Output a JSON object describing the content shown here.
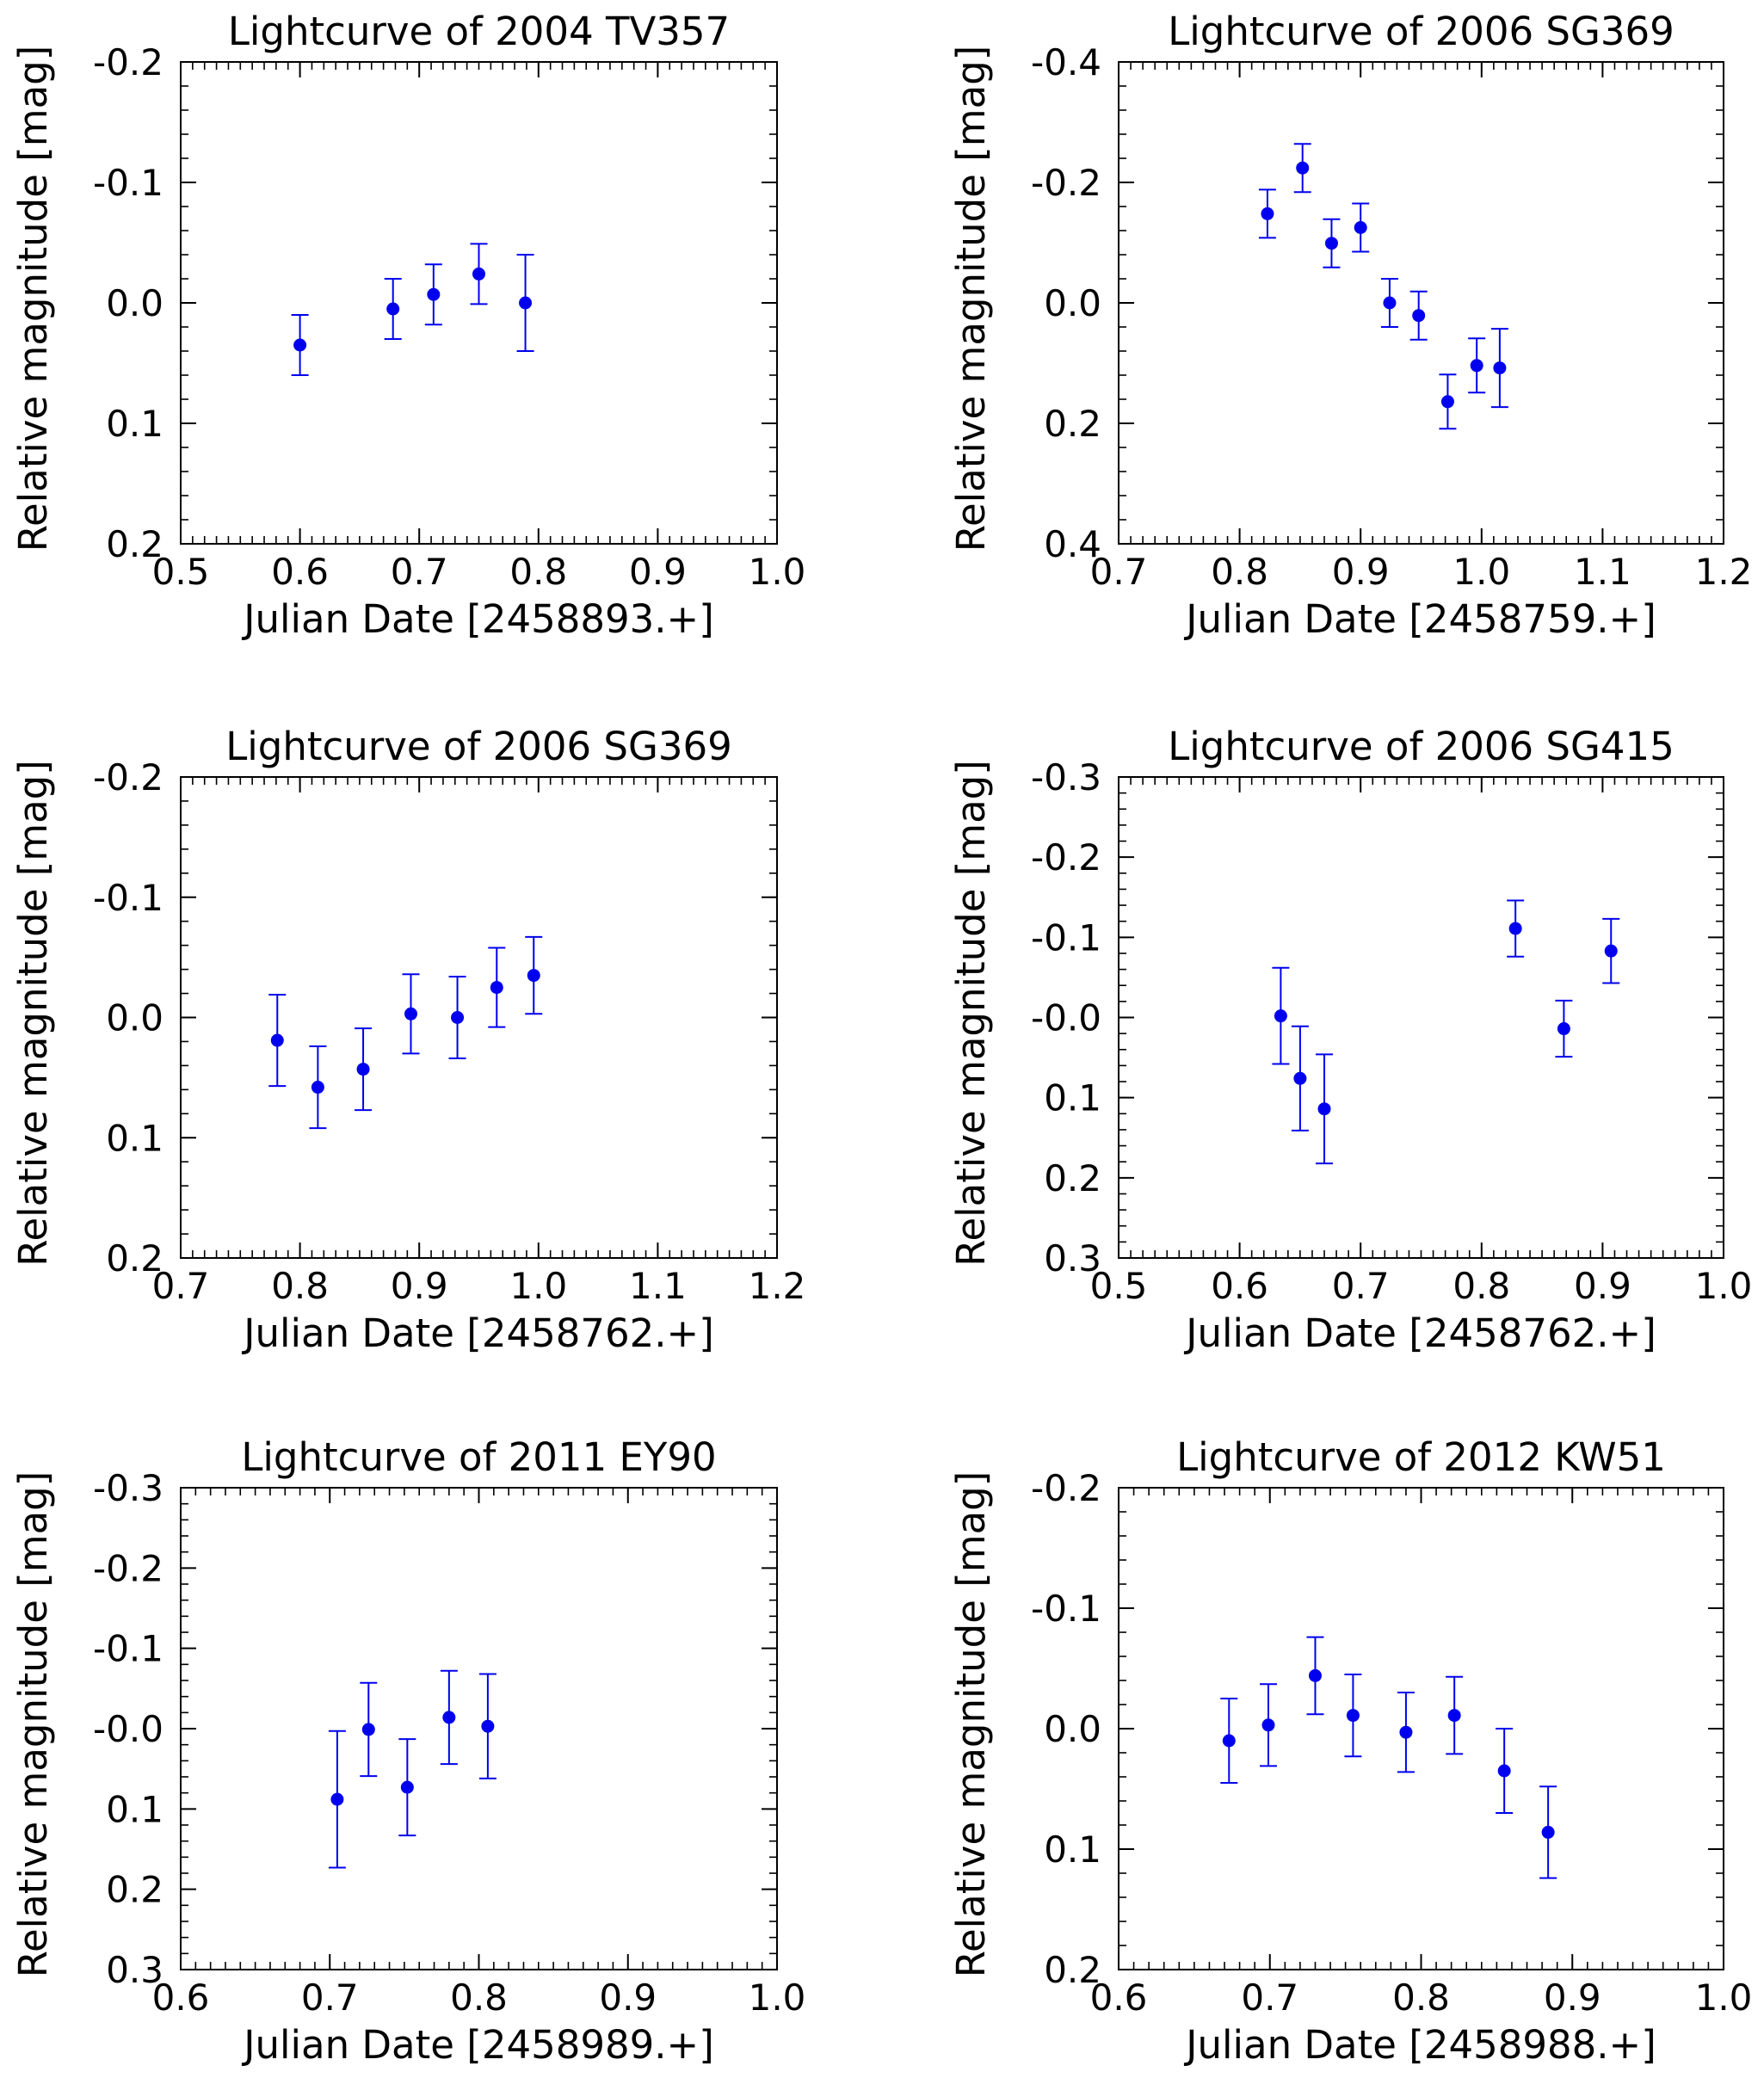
{
  "colors": {
    "marker": "#0000ee",
    "axis": "#000000",
    "background": "#ffffff"
  },
  "chart_data": [
    {
      "type": "scatter",
      "title": "Lightcurve of 2004 TV357",
      "xlabel": "Julian Date [2458893.+]",
      "ylabel": "Relative magnitude [mag]",
      "xlim": [
        0.5,
        1.0
      ],
      "ylim": [
        -0.2,
        0.2
      ],
      "y_inverted": true,
      "xticks": [
        0.5,
        0.6,
        0.7,
        0.8,
        0.9,
        1.0
      ],
      "xtick_labels": [
        "0.5",
        "0.6",
        "0.7",
        "0.8",
        "0.9",
        "1.0"
      ],
      "yticks": [
        -0.2,
        -0.1,
        0.0,
        0.1,
        0.2
      ],
      "ytick_labels": [
        "-0.2",
        "-0.1",
        "0.0",
        "0.1",
        "0.2"
      ],
      "x_minor_step": 0.01,
      "y_minor_step": 0.02,
      "x": [
        0.6,
        0.678,
        0.712,
        0.75,
        0.789
      ],
      "y": [
        0.035,
        0.005,
        -0.007,
        -0.024,
        0.0
      ],
      "yerr": [
        0.025,
        0.025,
        0.025,
        0.025,
        0.04
      ]
    },
    {
      "type": "scatter",
      "title": "Lightcurve of 2006 SG369",
      "xlabel": "Julian Date [2458759.+]",
      "ylabel": "Relative magnitude [mag]",
      "xlim": [
        0.7,
        1.2
      ],
      "ylim": [
        -0.4,
        0.4
      ],
      "y_inverted": true,
      "xticks": [
        0.7,
        0.8,
        0.9,
        1.0,
        1.1,
        1.2
      ],
      "xtick_labels": [
        "0.7",
        "0.8",
        "0.9",
        "1.0",
        "1.1",
        "1.2"
      ],
      "yticks": [
        -0.4,
        -0.2,
        0.0,
        0.2,
        0.4
      ],
      "ytick_labels": [
        "-0.4",
        "-0.2",
        "0.0",
        "0.2",
        "0.4"
      ],
      "x_minor_step": 0.01,
      "y_minor_step": 0.04,
      "x": [
        0.823,
        0.852,
        0.876,
        0.9,
        0.924,
        0.948,
        0.972,
        0.996,
        1.015
      ],
      "y": [
        -0.148,
        -0.224,
        -0.099,
        -0.125,
        0.0,
        0.021,
        0.164,
        0.104,
        0.108
      ],
      "yerr": [
        0.04,
        0.04,
        0.04,
        0.04,
        0.04,
        0.04,
        0.045,
        0.045,
        0.065
      ]
    },
    {
      "type": "scatter",
      "title": "Lightcurve of 2006 SG369",
      "xlabel": "Julian Date [2458762.+]",
      "ylabel": "Relative magnitude [mag]",
      "xlim": [
        0.7,
        1.2
      ],
      "ylim": [
        -0.2,
        0.2
      ],
      "y_inverted": true,
      "xticks": [
        0.7,
        0.8,
        0.9,
        1.0,
        1.1,
        1.2
      ],
      "xtick_labels": [
        "0.7",
        "0.8",
        "0.9",
        "1.0",
        "1.1",
        "1.2"
      ],
      "yticks": [
        -0.2,
        -0.1,
        0.0,
        0.1,
        0.2
      ],
      "ytick_labels": [
        "-0.2",
        "-0.1",
        "0.0",
        "0.1",
        "0.2"
      ],
      "x_minor_step": 0.01,
      "y_minor_step": 0.02,
      "x": [
        0.781,
        0.815,
        0.853,
        0.893,
        0.932,
        0.965,
        0.996
      ],
      "y": [
        0.019,
        0.058,
        0.043,
        -0.003,
        0.0,
        -0.025,
        -0.035
      ],
      "yerr": [
        0.038,
        0.034,
        0.034,
        0.033,
        0.034,
        0.033,
        0.032
      ]
    },
    {
      "type": "scatter",
      "title": "Lightcurve of 2006 SG415",
      "xlabel": "Julian Date [2458762.+]",
      "ylabel": "Relative magnitude [mag]",
      "xlim": [
        0.5,
        1.0
      ],
      "ylim": [
        -0.3,
        0.3
      ],
      "y_inverted": true,
      "xticks": [
        0.5,
        0.6,
        0.7,
        0.8,
        0.9,
        1.0
      ],
      "xtick_labels": [
        "0.5",
        "0.6",
        "0.7",
        "0.8",
        "0.9",
        "1.0"
      ],
      "yticks": [
        -0.3,
        -0.2,
        -0.1,
        0.0,
        0.1,
        0.2,
        0.3
      ],
      "ytick_labels": [
        "-0.3",
        "-0.2",
        "-0.1",
        "-0.0",
        "0.1",
        "0.2",
        "0.3"
      ],
      "x_minor_step": 0.01,
      "y_minor_step": 0.02,
      "x": [
        0.634,
        0.65,
        0.67,
        0.828,
        0.868,
        0.907
      ],
      "y": [
        -0.002,
        0.076,
        0.114,
        -0.111,
        0.014,
        -0.083
      ],
      "yerr": [
        0.06,
        0.065,
        0.068,
        0.035,
        0.035,
        0.04
      ]
    },
    {
      "type": "scatter",
      "title": "Lightcurve of 2011 EY90",
      "xlabel": "Julian Date [2458989.+]",
      "ylabel": "Relative magnitude [mag]",
      "xlim": [
        0.6,
        1.0
      ],
      "ylim": [
        -0.3,
        0.3
      ],
      "y_inverted": true,
      "xticks": [
        0.6,
        0.7,
        0.8,
        0.9,
        1.0
      ],
      "xtick_labels": [
        "0.6",
        "0.7",
        "0.8",
        "0.9",
        "1.0"
      ],
      "yticks": [
        -0.3,
        -0.2,
        -0.1,
        0.0,
        0.1,
        0.2,
        0.3
      ],
      "ytick_labels": [
        "-0.3",
        "-0.2",
        "-0.1",
        "-0.0",
        "0.1",
        "0.2",
        "0.3"
      ],
      "x_minor_step": 0.01,
      "y_minor_step": 0.02,
      "x": [
        0.705,
        0.726,
        0.752,
        0.78,
        0.806
      ],
      "y": [
        0.088,
        0.001,
        0.073,
        -0.014,
        -0.003
      ],
      "yerr": [
        0.085,
        0.058,
        0.06,
        0.058,
        0.065
      ]
    },
    {
      "type": "scatter",
      "title": "Lightcurve of 2012 KW51",
      "xlabel": "Julian Date [2458988.+]",
      "ylabel": "Relative magnitude [mag]",
      "xlim": [
        0.6,
        1.0
      ],
      "ylim": [
        -0.2,
        0.2
      ],
      "y_inverted": true,
      "xticks": [
        0.6,
        0.7,
        0.8,
        0.9,
        1.0
      ],
      "xtick_labels": [
        "0.6",
        "0.7",
        "0.8",
        "0.9",
        "1.0"
      ],
      "yticks": [
        -0.2,
        -0.1,
        0.0,
        0.1,
        0.2
      ],
      "ytick_labels": [
        "-0.2",
        "-0.1",
        "0.0",
        "0.1",
        "0.2"
      ],
      "x_minor_step": 0.01,
      "y_minor_step": 0.02,
      "x": [
        0.673,
        0.699,
        0.73,
        0.755,
        0.79,
        0.822,
        0.855,
        0.884
      ],
      "y": [
        0.01,
        -0.003,
        -0.044,
        -0.011,
        0.003,
        -0.011,
        0.035,
        0.086
      ],
      "yerr": [
        0.035,
        0.034,
        0.032,
        0.034,
        0.033,
        0.032,
        0.035,
        0.038
      ]
    }
  ]
}
